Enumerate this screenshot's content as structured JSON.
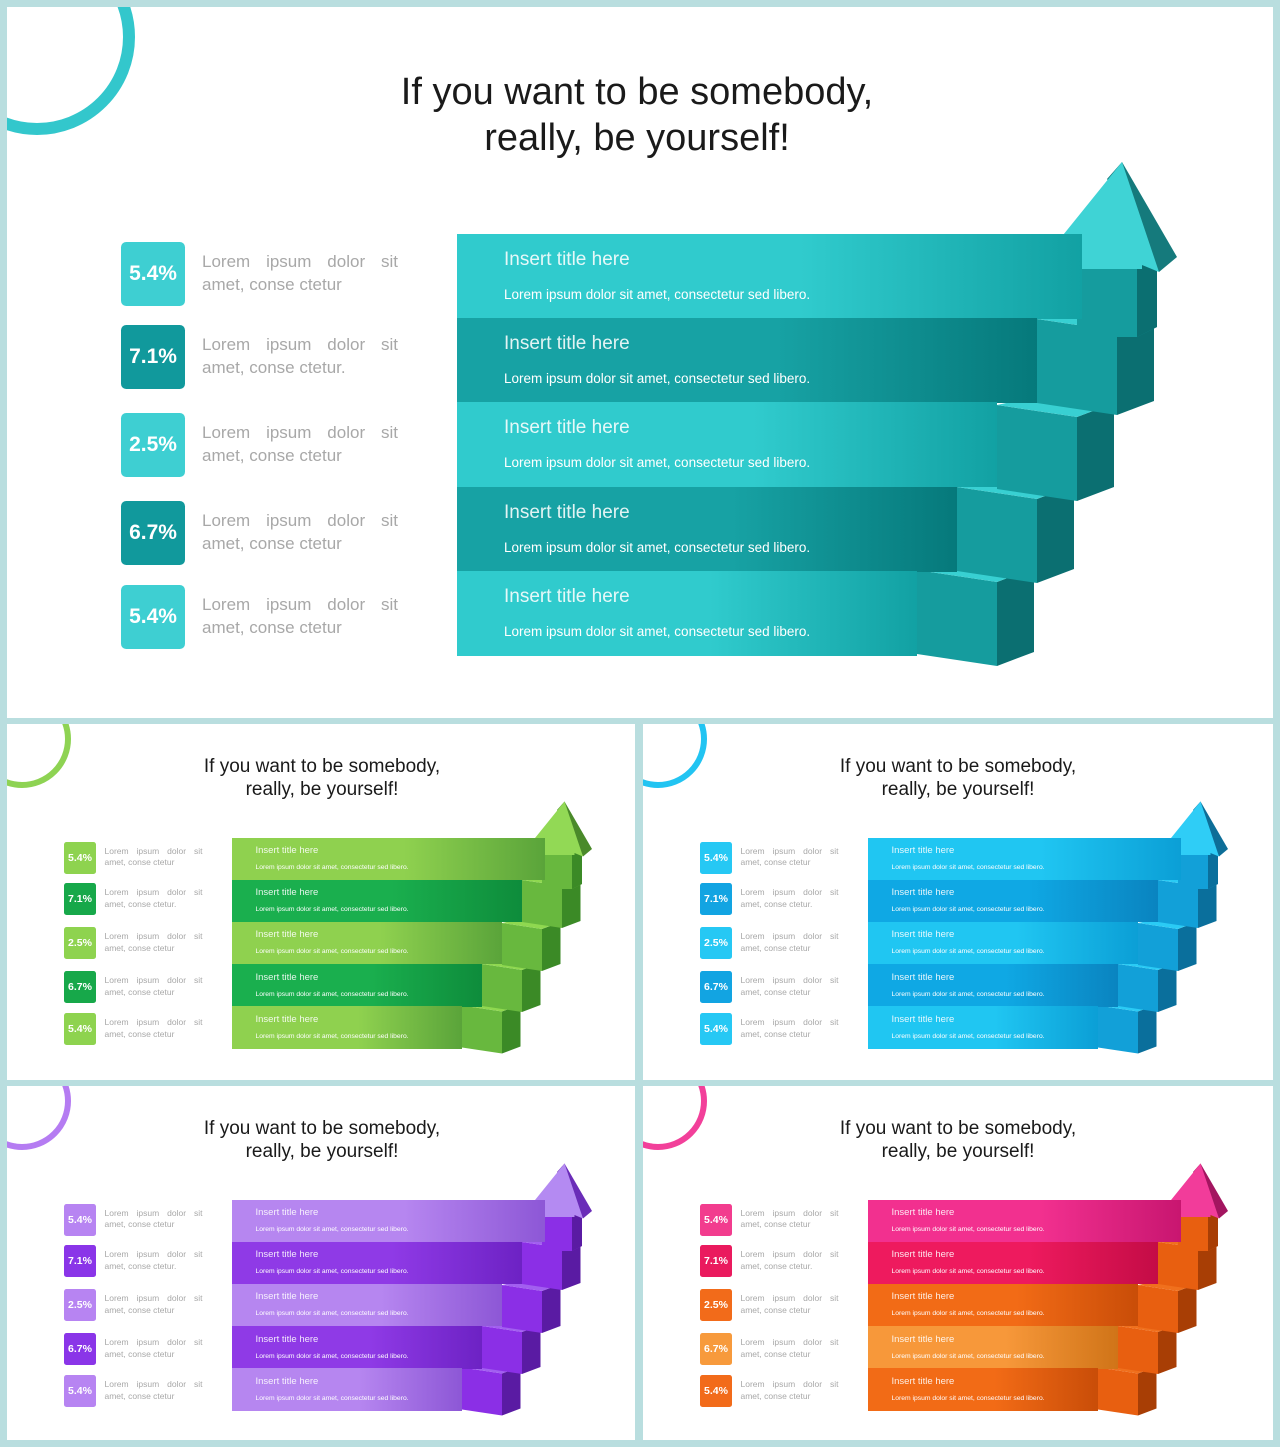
{
  "slides": [
    {
      "id": "main",
      "title_line1": "If you want to be somebody,",
      "title_line2": "really, be yourself!",
      "colors": {
        "ring": "#33c7cc",
        "badges": [
          "#3ecfd2",
          "#11999c",
          "#3ecfd2",
          "#11999c",
          "#3ecfd2"
        ],
        "bands": [
          [
            "#30cbcd",
            "#12a1a3"
          ],
          [
            "#17a2a4",
            "#06797b"
          ],
          [
            "#30cbcd",
            "#12a1a3"
          ],
          [
            "#17a2a4",
            "#06797b"
          ],
          [
            "#30cbcd",
            "#12a1a3"
          ]
        ],
        "top": "#38d0d2",
        "front": "#159c9e",
        "side": "#0b6f71",
        "arrow": "#3fd3d5",
        "arrow_side": "#157a7c"
      },
      "items": [
        {
          "value": "5.4%",
          "desc1": "Lorem ipsum dolor sit",
          "desc2": "amet, conse ctetur",
          "band_title": "Insert title here",
          "band_text": "Lorem ipsum dolor sit amet, consectetur sed libero."
        },
        {
          "value": "7.1%",
          "desc1": "Lorem ipsum dolor sit",
          "desc2": "amet, conse ctetur.",
          "band_title": "Insert title here",
          "band_text": "Lorem ipsum dolor sit amet, consectetur sed libero."
        },
        {
          "value": "2.5%",
          "desc1": "Lorem ipsum dolor sit",
          "desc2": "amet, conse ctetur",
          "band_title": "Insert title here",
          "band_text": "Lorem ipsum dolor sit amet, consectetur sed libero."
        },
        {
          "value": "6.7%",
          "desc1": "Lorem ipsum dolor sit",
          "desc2": "amet, conse ctetur",
          "band_title": "Insert title here",
          "band_text": "Lorem ipsum dolor sit amet, consectetur sed libero."
        },
        {
          "value": "5.4%",
          "desc1": "Lorem ipsum dolor sit",
          "desc2": "amet, conse ctetur",
          "band_title": "Insert title here",
          "band_text": "Lorem ipsum dolor sit amet, consectetur sed libero."
        }
      ]
    },
    {
      "id": "green",
      "title_line1": "If you want to be somebody,",
      "title_line2": "really, be yourself!",
      "colors": {
        "ring": "#8ed353",
        "badges": [
          "#8ed34f",
          "#17a84a",
          "#8ed34f",
          "#17a84a",
          "#8ed34f"
        ],
        "bands": [
          [
            "#8fd14f",
            "#5aa43a"
          ],
          [
            "#1aaf4e",
            "#0e8c3b"
          ],
          [
            "#8fd14f",
            "#5aa43a"
          ],
          [
            "#1aaf4e",
            "#0e8c3b"
          ],
          [
            "#8fd14f",
            "#5aa43a"
          ]
        ],
        "top": "#8fd850",
        "front": "#68b83e",
        "side": "#3b8a26",
        "arrow": "#92d955",
        "arrow_side": "#4a8a2a"
      },
      "items": [
        {
          "value": "5.4%",
          "desc1": "Lorem ipsum dolor sit",
          "desc2": "amet, conse ctetur",
          "band_title": "Insert title here",
          "band_text": "Lorem ipsum dolor sit amet, consectetur sed libero."
        },
        {
          "value": "7.1%",
          "desc1": "Lorem ipsum dolor sit",
          "desc2": "amet, conse ctetur.",
          "band_title": "Insert title here",
          "band_text": "Lorem ipsum dolor sit amet, consectetur sed libero."
        },
        {
          "value": "2.5%",
          "desc1": "Lorem ipsum dolor sit",
          "desc2": "amet, conse ctetur",
          "band_title": "Insert title here",
          "band_text": "Lorem ipsum dolor sit amet, consectetur sed libero."
        },
        {
          "value": "6.7%",
          "desc1": "Lorem ipsum dolor sit",
          "desc2": "amet, conse ctetur",
          "band_title": "Insert title here",
          "band_text": "Lorem ipsum dolor sit amet, consectetur sed libero."
        },
        {
          "value": "5.4%",
          "desc1": "Lorem ipsum dolor sit",
          "desc2": "amet, conse ctetur",
          "band_title": "Insert title here",
          "band_text": "Lorem ipsum dolor sit amet, consectetur sed libero."
        }
      ]
    },
    {
      "id": "blue",
      "title_line1": "If you want to be somebody,",
      "title_line2": "really, be yourself!",
      "colors": {
        "ring": "#22c4f2",
        "badges": [
          "#26c8f4",
          "#12a4e2",
          "#26c8f4",
          "#12a4e2",
          "#26c8f4"
        ],
        "bands": [
          [
            "#20c6f2",
            "#0b9fd6"
          ],
          [
            "#0fa8e4",
            "#0a84c0"
          ],
          [
            "#20c6f2",
            "#0b9fd6"
          ],
          [
            "#0fa8e4",
            "#0a84c0"
          ],
          [
            "#20c6f2",
            "#0b9fd6"
          ]
        ],
        "top": "#2acbf5",
        "front": "#12a0d8",
        "side": "#0a6f9c",
        "arrow": "#2fcdf6",
        "arrow_side": "#0d6e98"
      },
      "items": [
        {
          "value": "5.4%",
          "desc1": "Lorem ipsum dolor sit",
          "desc2": "amet, conse ctetur",
          "band_title": "Insert title here",
          "band_text": "Lorem ipsum dolor sit amet, consectetur sed libero."
        },
        {
          "value": "7.1%",
          "desc1": "Lorem ipsum dolor sit",
          "desc2": "amet, conse ctetur.",
          "band_title": "Insert title here",
          "band_text": "Lorem ipsum dolor sit amet, consectetur sed libero."
        },
        {
          "value": "2.5%",
          "desc1": "Lorem ipsum dolor sit",
          "desc2": "amet, conse ctetur",
          "band_title": "Insert title here",
          "band_text": "Lorem ipsum dolor sit amet, consectetur sed libero."
        },
        {
          "value": "6.7%",
          "desc1": "Lorem ipsum dolor sit",
          "desc2": "amet, conse ctetur",
          "band_title": "Insert title here",
          "band_text": "Lorem ipsum dolor sit amet, consectetur sed libero."
        },
        {
          "value": "5.4%",
          "desc1": "Lorem ipsum dolor sit",
          "desc2": "amet, conse ctetur",
          "band_title": "Insert title here",
          "band_text": "Lorem ipsum dolor sit amet, consectetur sed libero."
        }
      ]
    },
    {
      "id": "purple",
      "title_line1": "If you want to be somebody,",
      "title_line2": "really, be yourself!",
      "colors": {
        "ring": "#b57cf2",
        "badges": [
          "#b784f2",
          "#8a35e8",
          "#b784f2",
          "#8a35e8",
          "#b784f2"
        ],
        "bands": [
          [
            "#b686f0",
            "#8d57d6"
          ],
          [
            "#8f3ae6",
            "#6d22c4"
          ],
          [
            "#b686f0",
            "#8d57d6"
          ],
          [
            "#8f3ae6",
            "#6d22c4"
          ],
          [
            "#b686f0",
            "#8d57d6"
          ]
        ],
        "top": "#a25ff0",
        "front": "#8b2fe6",
        "side": "#5a1ba3",
        "arrow": "#b48af2",
        "arrow_side": "#6a2cb8"
      },
      "items": [
        {
          "value": "5.4%",
          "desc1": "Lorem ipsum dolor sit",
          "desc2": "amet, conse ctetur",
          "band_title": "Insert title here",
          "band_text": "Lorem ipsum dolor sit amet, consectetur sed libero."
        },
        {
          "value": "7.1%",
          "desc1": "Lorem ipsum dolor sit",
          "desc2": "amet, conse ctetur.",
          "band_title": "Insert title here",
          "band_text": "Lorem ipsum dolor sit amet, consectetur sed libero."
        },
        {
          "value": "2.5%",
          "desc1": "Lorem ipsum dolor sit",
          "desc2": "amet, conse ctetur",
          "band_title": "Insert title here",
          "band_text": "Lorem ipsum dolor sit amet, consectetur sed libero."
        },
        {
          "value": "6.7%",
          "desc1": "Lorem ipsum dolor sit",
          "desc2": "amet, conse ctetur",
          "band_title": "Insert title here",
          "band_text": "Lorem ipsum dolor sit amet, consectetur sed libero."
        },
        {
          "value": "5.4%",
          "desc1": "Lorem ipsum dolor sit",
          "desc2": "amet, conse ctetur",
          "band_title": "Insert title here",
          "band_text": "Lorem ipsum dolor sit amet, consectetur sed libero."
        }
      ]
    },
    {
      "id": "pink",
      "title_line1": "If you want to be somebody,",
      "title_line2": "really, be yourself!",
      "colors": {
        "ring": "#f2409a",
        "badges": [
          "#f23c8e",
          "#ea1a5e",
          "#f26b1a",
          "#f79a3c",
          "#f26b1a"
        ],
        "bands": [
          [
            "#f2308f",
            "#c81670"
          ],
          [
            "#ee1a5e",
            "#c40c46"
          ],
          [
            "#f26b16",
            "#c94d08"
          ],
          [
            "#f7983a",
            "#d07418"
          ],
          [
            "#f26b16",
            "#c94d08"
          ]
        ],
        "top": "#f0701d",
        "front": "#e85f10",
        "side": "#a83e05",
        "arrow": "#f23c9a",
        "arrow_side": "#a31560"
      },
      "items": [
        {
          "value": "5.4%",
          "desc1": "Lorem ipsum dolor sit",
          "desc2": "amet, conse ctetur",
          "band_title": "Insert title here",
          "band_text": "Lorem ipsum dolor sit amet, consectetur sed libero."
        },
        {
          "value": "7.1%",
          "desc1": "Lorem ipsum dolor sit",
          "desc2": "amet, conse ctetur.",
          "band_title": "Insert title here",
          "band_text": "Lorem ipsum dolor sit amet, consectetur sed libero."
        },
        {
          "value": "2.5%",
          "desc1": "Lorem ipsum dolor sit",
          "desc2": "amet, conse ctetur",
          "band_title": "Insert title here",
          "band_text": "Lorem ipsum dolor sit amet, consectetur sed libero."
        },
        {
          "value": "6.7%",
          "desc1": "Lorem ipsum dolor sit",
          "desc2": "amet, conse ctetur",
          "band_title": "Insert title here",
          "band_text": "Lorem ipsum dolor sit amet, consectetur sed libero."
        },
        {
          "value": "5.4%",
          "desc1": "Lorem ipsum dolor sit",
          "desc2": "amet, conse ctetur",
          "band_title": "Insert title here",
          "band_text": "Lorem ipsum dolor sit amet, consectetur sed libero."
        }
      ]
    }
  ]
}
